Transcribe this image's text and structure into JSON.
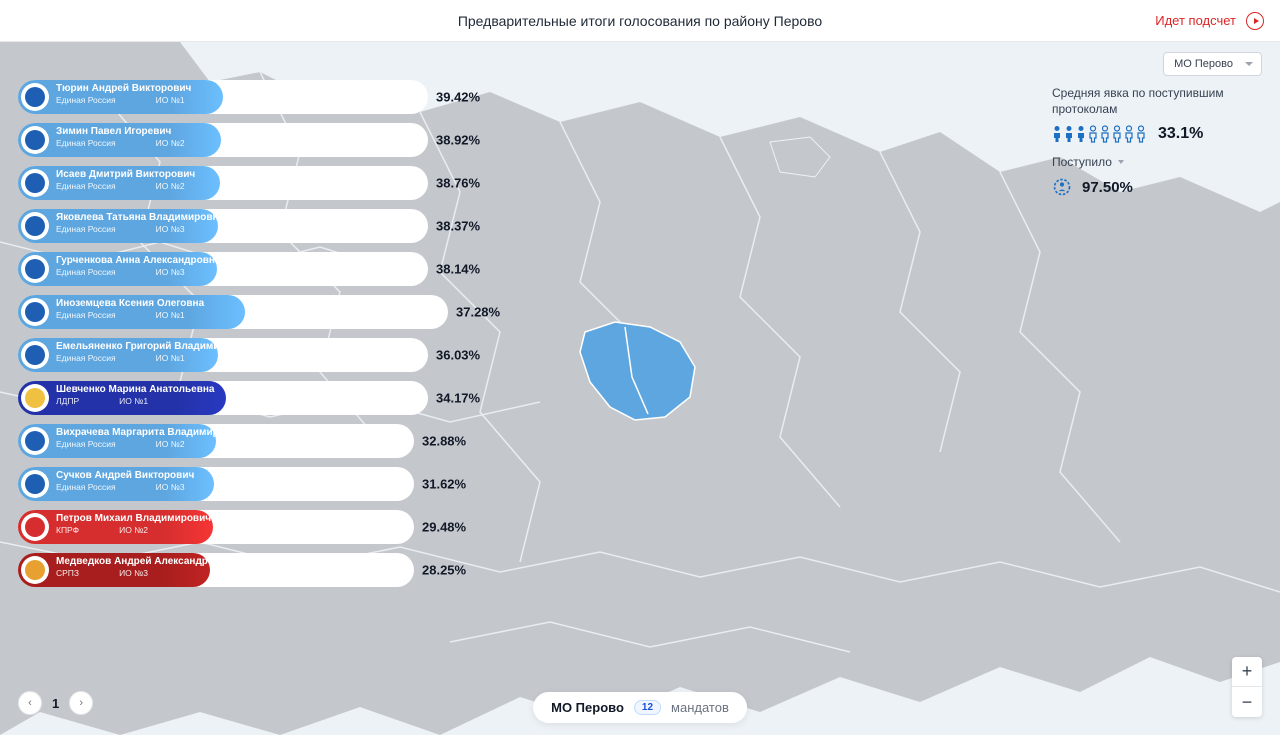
{
  "header": {
    "title": "Предварительные итоги голосования по району Перово",
    "status": "Идет подсчет"
  },
  "region_selector": {
    "value": "МО Перово"
  },
  "stats": {
    "avg_label": "Средняя явка по поступившим протоколам",
    "turnout_pct": "33.1%",
    "turnout_filled": 3,
    "turnout_total": 8,
    "received_label": "Поступило",
    "received_pct": "97.50%"
  },
  "candidates": {
    "max_bar_width": 430,
    "items": [
      {
        "name": "Тюрин Андрей Викторович",
        "party": "Единая Россия",
        "district": "ИО №1",
        "pct": 39.42,
        "fill_width": 205,
        "track_width": 410,
        "color": "#5ea6e0",
        "party_color": "#1e5fb3"
      },
      {
        "name": "Зимин Павел Игоревич",
        "party": "Единая Россия",
        "district": "ИО №2",
        "pct": 38.92,
        "fill_width": 203,
        "track_width": 410,
        "color": "#5ea6e0",
        "party_color": "#1e5fb3"
      },
      {
        "name": "Исаев Дмитрий Викторович",
        "party": "Единая Россия",
        "district": "ИО №2",
        "pct": 38.76,
        "fill_width": 202,
        "track_width": 410,
        "color": "#5ea6e0",
        "party_color": "#1e5fb3"
      },
      {
        "name": "Яковлева Татьяна Владимировна",
        "party": "Единая Россия",
        "district": "ИО №3",
        "pct": 38.37,
        "fill_width": 200,
        "track_width": 410,
        "color": "#5ea6e0",
        "party_color": "#1e5fb3"
      },
      {
        "name": "Гурченкова Анна Александровна",
        "party": "Единая Россия",
        "district": "ИО №3",
        "pct": 38.14,
        "fill_width": 199,
        "track_width": 410,
        "color": "#5ea6e0",
        "party_color": "#1e5fb3"
      },
      {
        "name": "Иноземцева Ксения Олеговна",
        "party": "Единая Россия",
        "district": "ИО №1",
        "pct": 37.28,
        "fill_width": 227,
        "track_width": 430,
        "color": "#5ea6e0",
        "party_color": "#1e5fb3"
      },
      {
        "name": "Емельяненко Григорий Владимирович",
        "party": "Единая Россия",
        "district": "ИО №1",
        "pct": 36.03,
        "fill_width": 200,
        "track_width": 410,
        "color": "#5ea6e0",
        "party_color": "#1e5fb3"
      },
      {
        "name": "Шевченко Марина Анатольевна",
        "party": "ЛДПР",
        "district": "ИО №1",
        "pct": 34.17,
        "fill_width": 208,
        "track_width": 410,
        "color": "#2332a8",
        "party_color": "#f0c040"
      },
      {
        "name": "Вихрачева Маргарита Владимировна",
        "party": "Единая Россия",
        "district": "ИО №2",
        "pct": 32.88,
        "fill_width": 198,
        "track_width": 396,
        "color": "#5ea6e0",
        "party_color": "#1e5fb3"
      },
      {
        "name": "Сучков Андрей Викторович",
        "party": "Единая Россия",
        "district": "ИО №3",
        "pct": 31.62,
        "fill_width": 196,
        "track_width": 396,
        "color": "#5ea6e0",
        "party_color": "#1e5fb3"
      },
      {
        "name": "Петров Михаил Владимирович",
        "party": "КПРФ",
        "district": "ИО №2",
        "pct": 29.48,
        "fill_width": 195,
        "track_width": 396,
        "color": "#d62e2e",
        "party_color": "#d62e2e"
      },
      {
        "name": "Медведков Андрей Александрович",
        "party": "СРПЗ",
        "district": "ИО №3",
        "pct": 28.25,
        "fill_width": 192,
        "track_width": 396,
        "color": "#a81e1e",
        "party_color": "#e8a030"
      }
    ]
  },
  "pagination": {
    "current": "1"
  },
  "bottom_pill": {
    "region": "МО Перово",
    "count": "12",
    "mandates_label": "мандатов"
  },
  "colors": {
    "map_land": "#c4c7cb",
    "map_bg": "#edf2f6",
    "highlight": "#5ea6e0",
    "person_filled": "#1d6fc4",
    "person_empty": "#b8c5d6"
  }
}
